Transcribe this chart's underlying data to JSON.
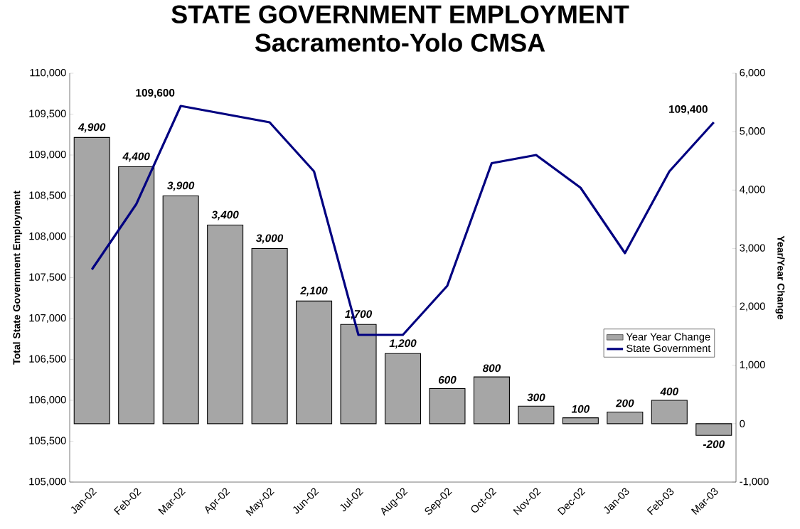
{
  "chart_data": {
    "type": "bar",
    "title": "STATE GOVERNMENT EMPLOYMENT",
    "subtitle": "Sacramento-Yolo CMSA",
    "ylabel": "Total State Government Employment",
    "y2label": "Year/Year Change",
    "categories": [
      "Jan-02",
      "Feb-02",
      "Mar-02",
      "Apr-02",
      "May-02",
      "Jun-02",
      "Jul-02",
      "Aug-02",
      "Sep-02",
      "Oct-02",
      "Nov-02",
      "Dec-02",
      "Jan-03",
      "Feb-03",
      "Mar-03"
    ],
    "series": [
      {
        "name": "Year Year Change",
        "axis": "y2",
        "color": "#a6a6a6",
        "values": [
          4900,
          4400,
          3900,
          3400,
          3000,
          2100,
          1700,
          1200,
          600,
          800,
          300,
          100,
          200,
          400,
          -200
        ],
        "value_labels": [
          "4,900",
          "4,400",
          "3,900",
          "3,400",
          "3,000",
          "2,100",
          "1,700",
          "1,200",
          "600",
          "800",
          "300",
          "100",
          "200",
          "400",
          "-200"
        ]
      },
      {
        "name": "State Government",
        "type": "line",
        "axis": "y",
        "color": "#000080",
        "values": [
          107600,
          108400,
          109600,
          109500,
          109400,
          108800,
          106800,
          106800,
          107400,
          108900,
          109000,
          108600,
          107800,
          108800,
          109400
        ],
        "value_labels": [
          null,
          null,
          "109,600",
          null,
          null,
          null,
          null,
          null,
          null,
          null,
          null,
          null,
          null,
          null,
          "109,400"
        ]
      }
    ],
    "ylim": [
      105000,
      110000
    ],
    "yticks": [
      {
        "value": 105000,
        "label": "105,000"
      },
      {
        "value": 105500,
        "label": "105,500"
      },
      {
        "value": 106000,
        "label": "106,000"
      },
      {
        "value": 106500,
        "label": "106,500"
      },
      {
        "value": 107000,
        "label": "107,000"
      },
      {
        "value": 107500,
        "label": "107,500"
      },
      {
        "value": 108000,
        "label": "108,000"
      },
      {
        "value": 108500,
        "label": "108,500"
      },
      {
        "value": 109000,
        "label": "109,000"
      },
      {
        "value": 109500,
        "label": "109,500"
      },
      {
        "value": 110000,
        "label": "110,000"
      }
    ],
    "y2lim": [
      -1000,
      6000
    ],
    "y2ticks": [
      {
        "value": -1000,
        "label": "-1,000"
      },
      0,
      {
        "value": 1000,
        "label": "1,000"
      },
      {
        "value": 2000,
        "label": "2,000"
      },
      {
        "value": 3000,
        "label": "3,000"
      },
      {
        "value": 4000,
        "label": "4,000"
      },
      {
        "value": 5000,
        "label": "5,000"
      },
      {
        "value": 6000,
        "label": "6,000"
      }
    ],
    "legend": "right"
  }
}
